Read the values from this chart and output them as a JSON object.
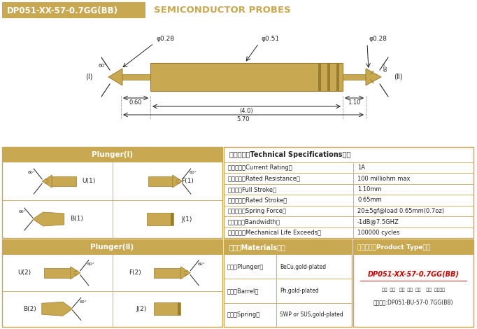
{
  "gold": "#C8A850",
  "gold_dark": "#9A7C30",
  "gold_text": "#C8A850",
  "white": "#FFFFFF",
  "black": "#222222",
  "red": "#CC0000",
  "bg": "#FFFFFF",
  "border": "#C8A850",
  "title_text": "DP051-XX-57-0.7GG(BB)",
  "title_sub": "SEMICONDUCTOR PROBES",
  "phi028": "φ0.28",
  "phi051": "φ0.51",
  "dim_060": "0.60",
  "dim_40": "(4.0)",
  "dim_110": "1.10",
  "dim_570": "5.70",
  "I_label": "(Ⅰ)",
  "II_label": "(Ⅱ)",
  "plunger1": "Plunger(Ⅰ)",
  "plunger2": "Plunger(Ⅱ)",
  "spec_header": "技术要求（Technical Specifications）：",
  "spec_labels": [
    "额定电流（Current Rating）",
    "额定电阴（Rated Resistance）",
    "满行程（Full Stroke）",
    "额定行程（Rated Stroke）",
    "额定弹力（Spring Force）",
    "频率带宽（Bandwidth）",
    "测试寿命（Mechanical Life Exceeds）"
  ],
  "spec_values": [
    "1A",
    "100 milliohm max",
    "1.10mm",
    "0.65mm",
    "20±5gf@load 0.65mm(0.7oz)",
    "-1dB@7.5GHZ",
    "100000 cycles"
  ],
  "mat_header": "材质（Materials）：",
  "mat_labels": [
    "针头（Plunger）",
    "针管（Barrel）",
    "弹簧（Spring）"
  ],
  "mat_values": [
    "BeCu,gold-plated",
    "Ph,gold-plated",
    "SWP or SUS,gold-plated"
  ],
  "pt_header": "成品型号（Product Type）：",
  "pt_code": "DP051-XX-57-0.7GG(BB)",
  "pt_sub": "系列  规格   头型  总长  弹力    镖金  针头材质",
  "pt_order": "订购举例:DP051-BU-57-0.7GG(BB)"
}
